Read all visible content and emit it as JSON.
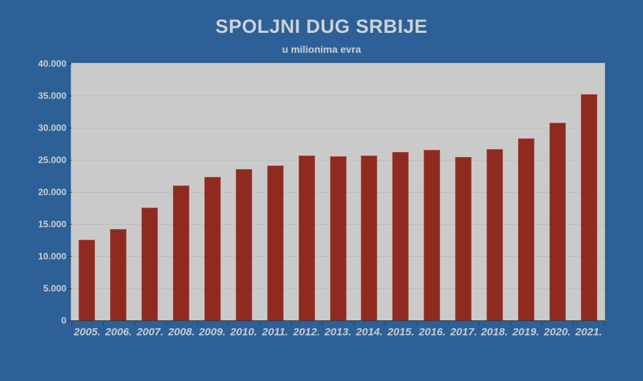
{
  "title": "SPOLJNI DUG SRBIJE",
  "subtitle": "u milionima evra",
  "colors": {
    "background": "#2d6096",
    "plot_background": "#cbcaca",
    "bar": "#8f2a21",
    "bar_border": "#a5554a",
    "gridline": "#bcbbbc",
    "axis": "#2e3b47",
    "label_text": "#ccd2da"
  },
  "chart_data": {
    "type": "bar",
    "title": "SPOLJNI DUG SRBIJE",
    "subtitle": "u milionima evra",
    "categories": [
      "2005.",
      "2006.",
      "2007.",
      "2008.",
      "2009.",
      "2010.",
      "2011.",
      "2012.",
      "2013.",
      "2014.",
      "2015.",
      "2016.",
      "2017.",
      "2018.",
      "2019.",
      "2020.",
      "2021."
    ],
    "values": [
      12500,
      14200,
      17500,
      21000,
      22300,
      23500,
      24100,
      25700,
      25600,
      25700,
      26200,
      26500,
      25500,
      26700,
      28300,
      30800,
      35200
    ],
    "xlabel": "",
    "ylabel": "",
    "ylim": [
      0,
      40000
    ],
    "ytick_step": 5000,
    "ytick_labels": [
      "0",
      "5.000",
      "10.000",
      "15.000",
      "20.000",
      "25.000",
      "30.000",
      "35.000",
      "40.000"
    ],
    "grid": true,
    "legend": false
  }
}
